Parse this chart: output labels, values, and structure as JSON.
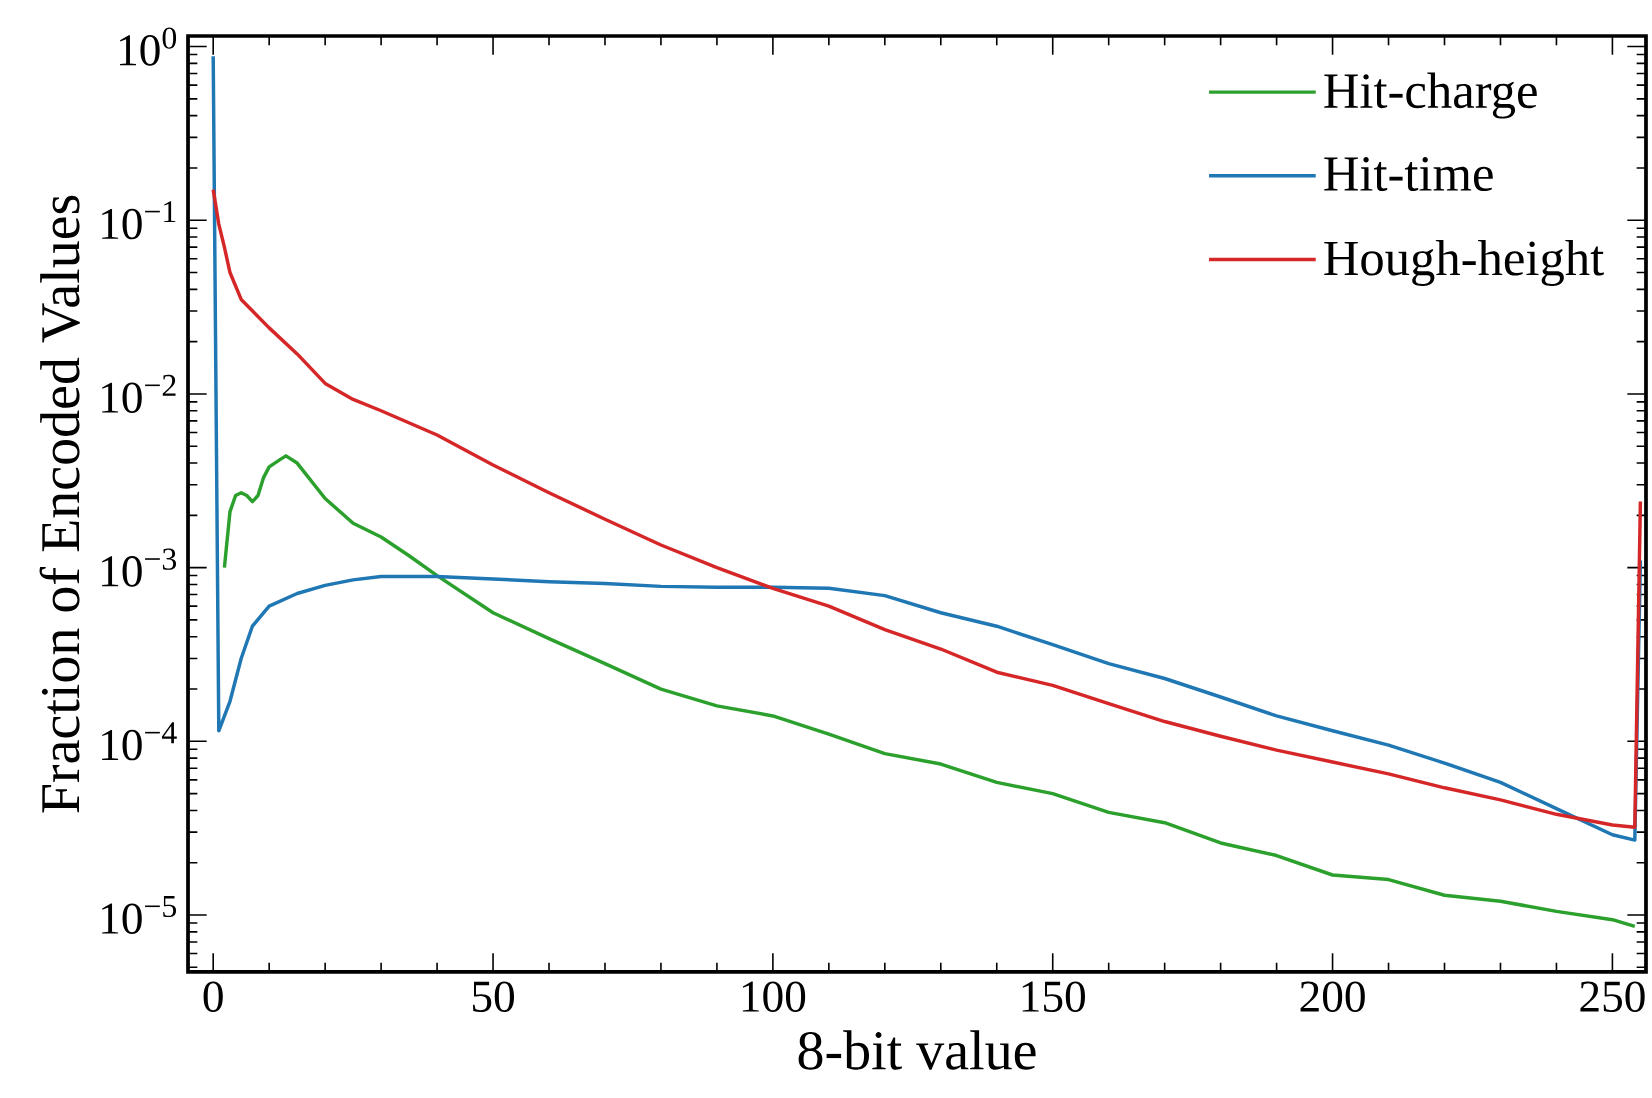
{
  "chart_data": {
    "type": "line",
    "xlabel": "8-bit value",
    "ylabel": "Fraction of Encoded Values",
    "xlim": [
      -4.5,
      256
    ],
    "ylim": [
      4.7e-06,
      1.15
    ],
    "log": "y",
    "grid": false,
    "legend": "top right",
    "line_style": "solid",
    "marker": "none",
    "xticks": [
      0,
      50,
      100,
      150,
      200,
      250
    ],
    "yticks": [
      {
        "value": 1e-05,
        "label": "10$^{−5}$"
      },
      {
        "value": 0.0001,
        "label": "10$^{−4}$"
      },
      {
        "value": 0.001,
        "label": "10$^{−3}$"
      },
      {
        "value": 0.01,
        "label": "10$^{−2}$"
      },
      {
        "value": 0.1,
        "label": "10$^{−1}$"
      },
      {
        "value": 1,
        "label": "10$^{0}$"
      }
    ],
    "series": [
      {
        "name": "Hit-charge",
        "color": "#2ca02c",
        "x": [
          2,
          3,
          4,
          5,
          6,
          7,
          8,
          9,
          10,
          12,
          13,
          15,
          20,
          25,
          30,
          35,
          40,
          50,
          60,
          70,
          80,
          90,
          100,
          110,
          120,
          130,
          140,
          150,
          160,
          170,
          180,
          190,
          200,
          210,
          220,
          230,
          240,
          250,
          254
        ],
        "values": [
          0.001,
          0.0021,
          0.0026,
          0.0027,
          0.0026,
          0.0024,
          0.0026,
          0.0033,
          0.0038,
          0.0042,
          0.0044,
          0.004,
          0.0025,
          0.0018,
          0.0015,
          0.00117,
          0.0009,
          0.00055,
          0.00039,
          0.00028,
          0.0002,
          0.00016,
          0.00014,
          0.00011,
          8.5e-05,
          7.4e-05,
          5.8e-05,
          5e-05,
          3.9e-05,
          3.4e-05,
          2.6e-05,
          2.2e-05,
          1.7e-05,
          1.6e-05,
          1.3e-05,
          1.2e-05,
          1.05e-05,
          9.4e-06,
          8.6e-06
        ]
      },
      {
        "name": "Hit-time",
        "color": "#1f77b4",
        "x": [
          0,
          1,
          3,
          5,
          7,
          10,
          15,
          20,
          25,
          30,
          40,
          50,
          60,
          70,
          80,
          90,
          100,
          110,
          120,
          130,
          140,
          150,
          160,
          170,
          180,
          190,
          200,
          210,
          220,
          230,
          240,
          250,
          254,
          255
        ],
        "values": [
          0.88,
          0.000115,
          0.00017,
          0.0003,
          0.00046,
          0.0006,
          0.00071,
          0.00079,
          0.00085,
          0.00089,
          0.00089,
          0.00086,
          0.00083,
          0.00081,
          0.00078,
          0.00077,
          0.00077,
          0.00076,
          0.00069,
          0.00055,
          0.00046,
          0.00036,
          0.00028,
          0.00023,
          0.00018,
          0.00014,
          0.000115,
          9.5e-05,
          7.5e-05,
          5.8e-05,
          4.1e-05,
          2.9e-05,
          2.7e-05,
          0.0011
        ]
      },
      {
        "name": "Hough-height",
        "color": "#d62728",
        "x": [
          0,
          1,
          2,
          3,
          5,
          10,
          15,
          20,
          25,
          30,
          40,
          50,
          60,
          70,
          80,
          90,
          100,
          110,
          120,
          130,
          140,
          150,
          160,
          170,
          180,
          190,
          200,
          210,
          220,
          230,
          240,
          250,
          254,
          255
        ],
        "values": [
          0.15,
          0.095,
          0.07,
          0.05,
          0.035,
          0.024,
          0.017,
          0.0115,
          0.0093,
          0.008,
          0.0058,
          0.0039,
          0.0027,
          0.0019,
          0.00135,
          0.001,
          0.00076,
          0.0006,
          0.00044,
          0.00034,
          0.00025,
          0.00021,
          0.000165,
          0.00013,
          0.000107,
          8.9e-05,
          7.6e-05,
          6.5e-05,
          5.4e-05,
          4.6e-05,
          3.8e-05,
          3.3e-05,
          3.2e-05,
          0.0024
        ]
      }
    ]
  }
}
